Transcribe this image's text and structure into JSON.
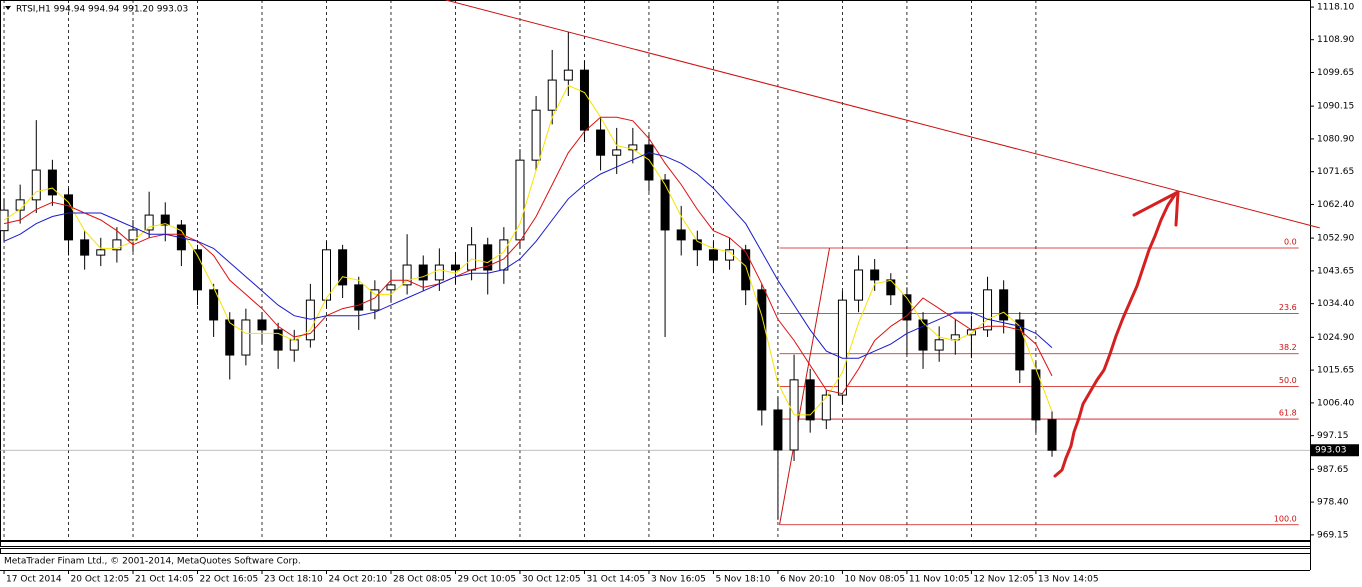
{
  "chart_data": {
    "type": "candlestick",
    "title": "RTSI,H1  994.94 994.94 991.20 993.03",
    "footer": "MetaTrader Finam Ltd., © 2001-2014, MetaQuotes Software Corp.",
    "xlim": [
      -0.25,
      81
    ],
    "ylim": [
      967.7,
      1120.1
    ],
    "xticks": [
      {
        "value": 0,
        "label": "17 Oct 2014"
      },
      {
        "value": 4,
        "label": "20 Oct 12:05"
      },
      {
        "value": 8,
        "label": "21 Oct 14:05"
      },
      {
        "value": 12,
        "label": "22 Oct 16:05"
      },
      {
        "value": 16,
        "label": "23 Oct 18:10"
      },
      {
        "value": 20,
        "label": "24 Oct 20:10"
      },
      {
        "value": 24,
        "label": "28 Oct 08:05"
      },
      {
        "value": 28,
        "label": "29 Oct 10:05"
      },
      {
        "value": 32,
        "label": "30 Oct 12:05"
      },
      {
        "value": 36,
        "label": "31 Oct 14:05"
      },
      {
        "value": 40,
        "label": "3 Nov 16:05"
      },
      {
        "value": 44,
        "label": "5 Nov 18:10"
      },
      {
        "value": 48,
        "label": "6 Nov 20:10"
      },
      {
        "value": 52,
        "label": "10 Nov 08:05"
      },
      {
        "value": 56,
        "label": "11 Nov 10:05"
      },
      {
        "value": 60,
        "label": "12 Nov 12:05"
      },
      {
        "value": 64,
        "label": "13 Nov 14:05"
      }
    ],
    "yticks": [
      {
        "value": 1118.1,
        "label": "1118.10"
      },
      {
        "value": 1108.9,
        "label": "1108.90"
      },
      1099.65,
      1090.15,
      {
        "value": 1080.9,
        "label": "1080.90"
      },
      1071.65,
      {
        "value": 1062.4,
        "label": "1062.40"
      },
      {
        "value": 1052.9,
        "label": "1052.90"
      },
      1043.65,
      {
        "value": 1034.4,
        "label": "1034.40"
      },
      {
        "value": 1024.9,
        "label": "1024.90"
      },
      1015.65,
      {
        "value": 1006.4,
        "label": "1006.40"
      },
      997.15,
      987.65,
      {
        "value": 978.4,
        "label": "978.40"
      },
      969.15
    ],
    "grid": true,
    "up_color": "#ffffff",
    "down_color": "#000000",
    "open": [
      1055.0,
      1060.8,
      1063.7,
      1072.1,
      1065.1,
      1052.4,
      1048.1,
      1049.6,
      1052.4,
      1055.2,
      1059.4,
      1056.6,
      1049.6,
      1038.3,
      1029.8,
      1019.9,
      1029.8,
      1027.0,
      1021.3,
      1024.2,
      1035.4,
      1049.6,
      1039.7,
      1032.6,
      1038.3,
      1039.7,
      1045.3,
      1041.1,
      1045.3,
      1043.9,
      1051.0,
      1043.9,
      1052.4,
      1074.9,
      1089.0,
      1097.5,
      1100.3,
      1083.4,
      1076.3,
      1077.8,
      1079.2,
      1069.3,
      1055.2,
      1052.4,
      1049.6,
      1046.7,
      1049.6,
      1038.3,
      1004.4,
      993.1,
      1012.9,
      1001.6,
      1008.6,
      1035.4,
      1043.9,
      1041.1,
      1036.9,
      1029.8,
      1021.3,
      1024.2,
      1025.6,
      1027.0,
      1038.3,
      1029.8,
      1015.7,
      1001.6
    ],
    "high": [
      1064.0,
      1068.0,
      1086.2,
      1075.0,
      1067.0,
      1055.0,
      1053.0,
      1056.0,
      1058.0,
      1066.0,
      1063.0,
      1058.0,
      1051.0,
      1040.0,
      1032.0,
      1033.0,
      1032.0,
      1029.0,
      1027.0,
      1040.0,
      1052.0,
      1051.0,
      1042.0,
      1041.0,
      1044.0,
      1054.0,
      1048.0,
      1050.0,
      1049.0,
      1056.0,
      1053.0,
      1056.0,
      1078.0,
      1093.0,
      1106.0,
      1111.0,
      1103.0,
      1087.0,
      1084.0,
      1084.0,
      1082.0,
      1071.0,
      1062.0,
      1055.0,
      1052.0,
      1053.0,
      1051.0,
      1040.0,
      1008.0,
      1020.0,
      1016.0,
      1010.0,
      1038.0,
      1048.0,
      1047.0,
      1043.0,
      1039.0,
      1032.0,
      1028.0,
      1030.0,
      1031.0,
      1042.0,
      1041.0,
      1032.0,
      1018.0,
      1004.0
    ],
    "low": [
      1052.0,
      1057.0,
      1060.0,
      1062.0,
      1048.0,
      1044.0,
      1045.0,
      1046.0,
      1049.0,
      1053.0,
      1052.0,
      1045.0,
      1034.0,
      1025.0,
      1013.0,
      1017.0,
      1023.0,
      1016.0,
      1018.0,
      1022.0,
      1033.0,
      1036.0,
      1027.0,
      1030.0,
      1035.0,
      1037.0,
      1038.0,
      1038.0,
      1040.0,
      1041.0,
      1037.0,
      1040.0,
      1050.0,
      1072.0,
      1085.0,
      1093.0,
      1080.0,
      1072.0,
      1071.0,
      1074.0,
      1066.0,
      1025.0,
      1048.0,
      1045.0,
      1043.0,
      1044.0,
      1034.0,
      1000.0,
      973.4,
      990.0,
      998.0,
      999.0,
      1006.0,
      1032.0,
      1038.0,
      1034.0,
      1020.0,
      1016.0,
      1018.0,
      1020.0,
      1019.0,
      1025.0,
      1026.0,
      1012.0,
      998.0,
      991.2
    ],
    "close": [
      1060.8,
      1063.7,
      1072.1,
      1065.1,
      1052.4,
      1048.1,
      1049.6,
      1052.4,
      1055.2,
      1059.4,
      1056.6,
      1049.6,
      1038.3,
      1029.8,
      1019.9,
      1029.8,
      1027.0,
      1021.3,
      1024.2,
      1035.4,
      1049.6,
      1039.7,
      1032.6,
      1038.3,
      1039.7,
      1045.3,
      1041.1,
      1045.3,
      1043.9,
      1051.0,
      1043.9,
      1052.4,
      1074.9,
      1089.0,
      1097.5,
      1100.3,
      1083.4,
      1076.3,
      1077.8,
      1079.2,
      1069.3,
      1055.2,
      1052.4,
      1049.6,
      1046.7,
      1049.6,
      1038.3,
      1004.4,
      993.1,
      1012.9,
      1001.6,
      1008.6,
      1035.4,
      1043.9,
      1041.1,
      1036.9,
      1029.8,
      1021.3,
      1024.2,
      1025.6,
      1027.0,
      1038.3,
      1029.8,
      1015.7,
      1001.6,
      993.03
    ],
    "lines": [
      {
        "color": "#f5e400",
        "values": [
          1058,
          1061,
          1066,
          1067,
          1063,
          1055,
          1050,
          1050,
          1052,
          1056,
          1057,
          1055,
          1048,
          1039,
          1029,
          1026,
          1026,
          1026,
          1024,
          1027,
          1036,
          1042,
          1041,
          1037,
          1037,
          1041,
          1042,
          1044,
          1043,
          1047,
          1046,
          1049,
          1057,
          1072,
          1087,
          1096,
          1094,
          1087,
          1079,
          1078,
          1075,
          1068,
          1059,
          1052,
          1050,
          1049,
          1045,
          1031,
          1012,
          1003,
          1003,
          1008,
          1015,
          1029,
          1040,
          1041,
          1036,
          1029,
          1025,
          1024,
          1026,
          1030,
          1032,
          1028,
          1016,
          1004
        ]
      },
      {
        "color": "#dd1111",
        "values": [
          1057,
          1058,
          1061,
          1063,
          1062,
          1060,
          1058,
          1055,
          1051,
          1053,
          1054,
          1054,
          1052,
          1048,
          1041,
          1037,
          1033,
          1028,
          1025,
          1026,
          1031,
          1033,
          1034,
          1036,
          1041,
          1041,
          1039,
          1040,
          1042,
          1044,
          1045,
          1047,
          1052,
          1059,
          1068,
          1077,
          1083,
          1087,
          1087,
          1086,
          1081,
          1074,
          1068,
          1061,
          1055,
          1053,
          1049,
          1040,
          1030,
          1024,
          1017,
          1010,
          1009,
          1016,
          1024,
          1028,
          1031,
          1036,
          1033,
          1030,
          1027,
          1028,
          1028,
          1027,
          1023,
          1014
        ]
      },
      {
        "color": "#1a1acc",
        "values": [
          1052,
          1054,
          1057,
          1059,
          1060,
          1060,
          1060,
          1058,
          1056,
          1054,
          1054,
          1053,
          1052,
          1050,
          1046,
          1042,
          1038,
          1034,
          1031,
          1030,
          1031,
          1031,
          1031,
          1032,
          1034,
          1036,
          1038,
          1040,
          1042,
          1043,
          1043,
          1044,
          1047,
          1052,
          1058,
          1064,
          1068,
          1071,
          1073,
          1075,
          1077,
          1076,
          1074,
          1071,
          1067,
          1062,
          1057,
          1049,
          1041,
          1034,
          1027,
          1021,
          1019,
          1019,
          1021,
          1023,
          1026,
          1028,
          1030,
          1032,
          1032,
          1030,
          1029,
          1028,
          1026,
          1022
        ]
      }
    ],
    "last_price": 993.03,
    "trendline": {
      "color": "#cc1111",
      "x": [
        27.4,
        81.6
      ],
      "y": [
        1120.1,
        1055.8
      ]
    },
    "fibo": {
      "color": "#cc1111",
      "high": 1050.1,
      "low": 972.0,
      "x": [
        48.1,
        51.2,
        80.3
      ],
      "levels": [
        {
          "value": 0,
          "label": "0.0"
        },
        23.6,
        38.2,
        {
          "value": 50,
          "label": "50.0"
        },
        61.8,
        {
          "value": 100,
          "label": "100.0"
        }
      ]
    }
  }
}
